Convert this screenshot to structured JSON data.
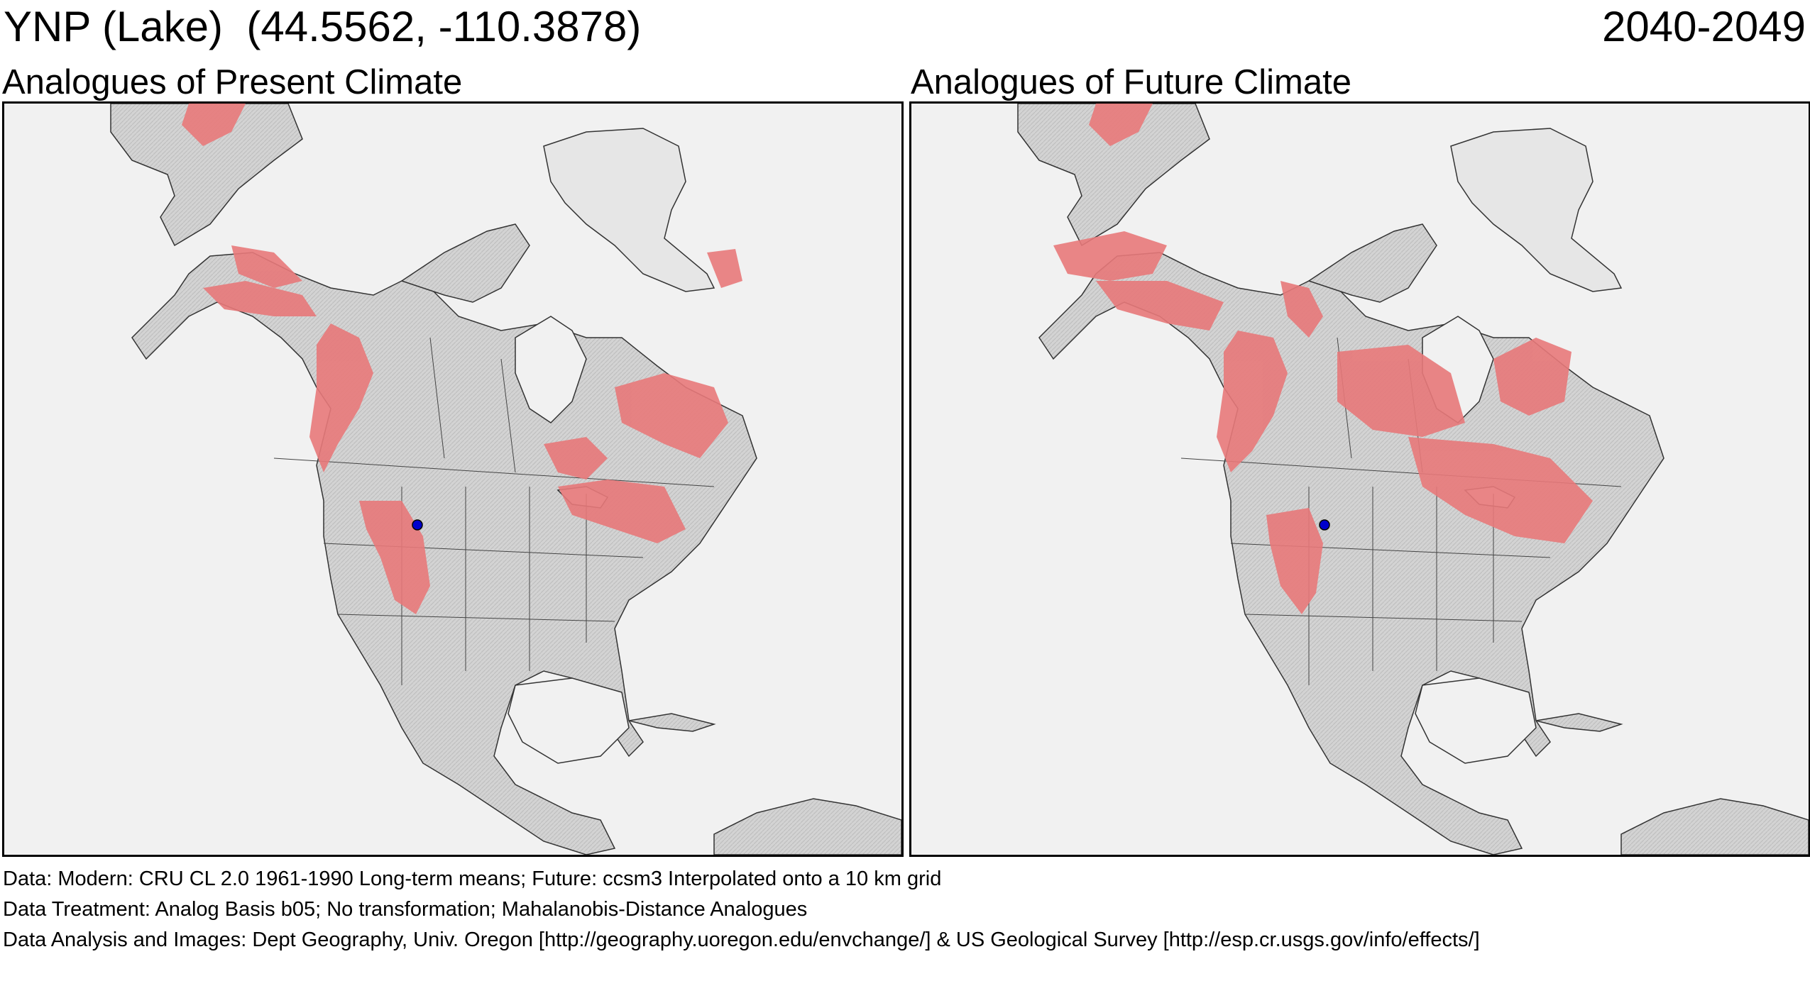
{
  "header": {
    "site_label": "YNP (Lake)  (44.5562, -110.3878)",
    "period": "2040-2049"
  },
  "panels": [
    {
      "title": "Analogues of Present Climate"
    },
    {
      "title": "Analogues of Future Climate"
    }
  ],
  "colors": {
    "analogue_fill": "#e8797a",
    "site_marker": "#0000cc",
    "land": "#d4d4d4",
    "ocean": "#f1f1f1"
  },
  "footer": {
    "data_line": "Data:  Modern: CRU CL 2.0 1961-1990 Long-term means; Future: ccsm3 Interpolated onto a 10 km grid",
    "treatment_line": "Data Treatment:  Analog Basis b05; No transformation; Mahalanobis-Distance Analogues",
    "analysis_line": "Data Analysis and Images:  Dept Geography, Univ. Oregon [http://geography.uoregon.edu/envchange/] & US Geological Survey [http://esp.cr.usgs.gov/info/effects/]"
  }
}
